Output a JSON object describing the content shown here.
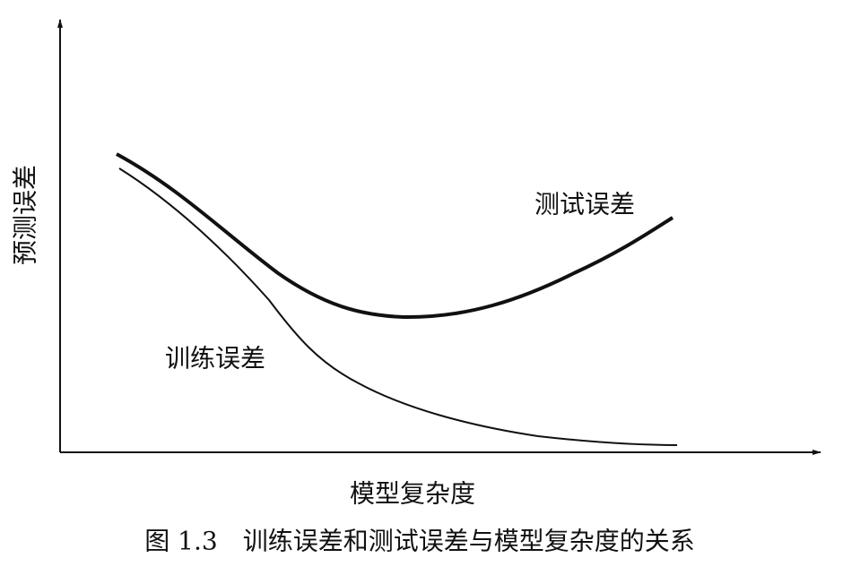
{
  "axes": {
    "y_label": "预测误差",
    "x_label": "模型复杂度"
  },
  "curves": {
    "test_label": "测试误差",
    "train_label": "训练误差"
  },
  "caption": "图 1.3　训练误差和测试误差与模型复杂度的关系"
}
